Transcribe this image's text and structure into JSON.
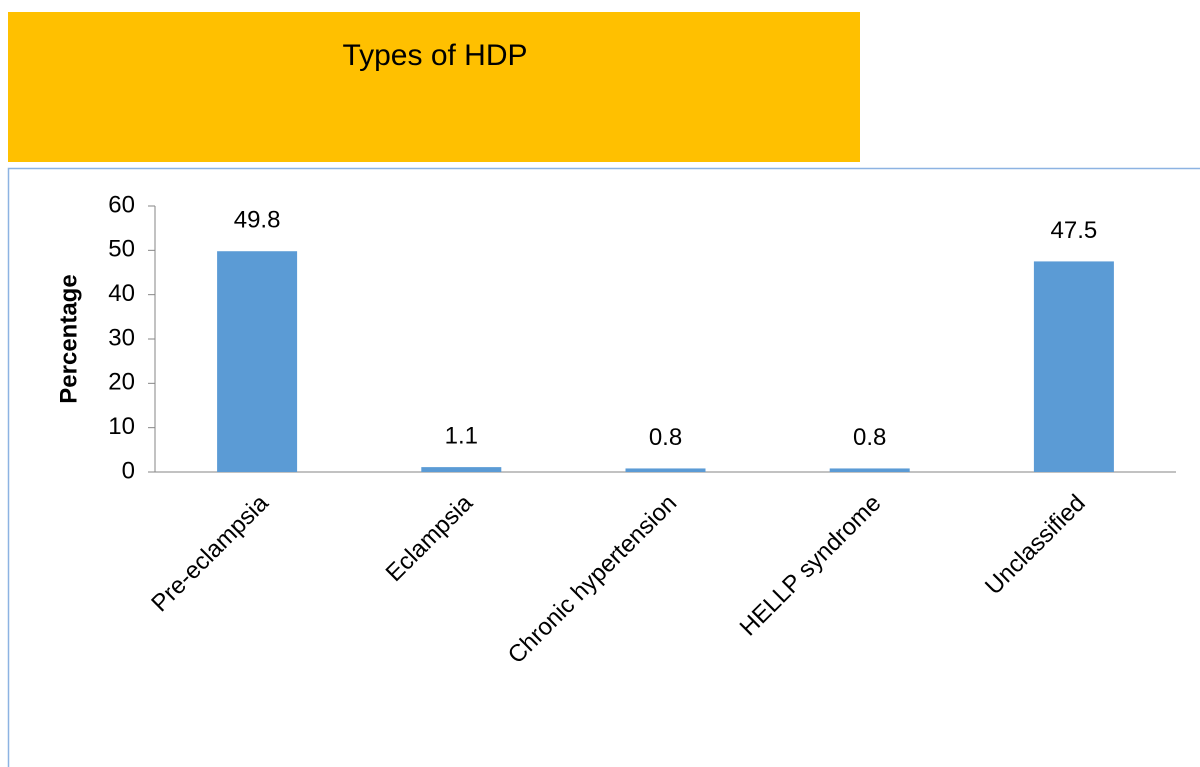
{
  "chart_data": {
    "type": "bar",
    "title": "Types of HDP",
    "y_label": "Percentage",
    "categories": [
      "Pre-eclampsia",
      "Eclampsia",
      "Chronic hypertension",
      "HELLP syndrome",
      "Unclassified"
    ],
    "values": [
      49.8,
      1.1,
      0.8,
      0.8,
      47.5
    ],
    "color": "#5b9bd5",
    "ylim": [
      0,
      60
    ],
    "yticks": [
      0,
      10,
      20,
      30,
      40,
      50,
      60
    ],
    "grid": false,
    "data_labels": true
  }
}
